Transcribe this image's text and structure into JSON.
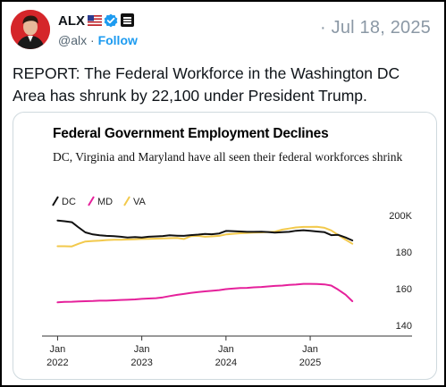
{
  "author": {
    "name": "ALX",
    "handle": "@alx",
    "separator": "·",
    "follow_label": "Follow",
    "flag_icon": "us-flag-icon",
    "verified_icon": "verified-badge-icon",
    "affiliate_icon": "affiliate-badge-icon"
  },
  "post": {
    "date_prefix": "·",
    "date": "Jul 18, 2025",
    "text": "REPORT: The Federal Workforce in the Washington DC Area has shrunk by 22,100 under President Trump."
  },
  "colors": {
    "verified_blue": "#1d9bf0",
    "avatar_red": "#d5262a",
    "DC": "#111111",
    "MD": "#e5219b",
    "VA": "#f2c94c"
  },
  "chart_data": {
    "type": "line",
    "title": "Federal Government Employment Declines",
    "subtitle": "DC, Virginia and Maryland have all seen their federal workforces shrink",
    "units_label": "200K",
    "ylim": [
      135,
      205
    ],
    "y_ticks": [
      200,
      180,
      160,
      140
    ],
    "y_tick_labels": [
      "200K",
      "180",
      "160",
      "140"
    ],
    "xlim": [
      2021.9,
      2025.7
    ],
    "x_ticks": [
      {
        "x": 2022,
        "top": "Jan",
        "bottom": "2022"
      },
      {
        "x": 2023,
        "top": "Jan",
        "bottom": "2023"
      },
      {
        "x": 2024,
        "top": "Jan",
        "bottom": "2024"
      },
      {
        "x": 2025,
        "top": "Jan",
        "bottom": "2025"
      }
    ],
    "legend": [
      "DC",
      "MD",
      "VA"
    ],
    "grid": false,
    "legend_position": "top-left",
    "series": [
      {
        "name": "DC",
        "points": [
          [
            2022.0,
            197.3
          ],
          [
            2022.08,
            196.9
          ],
          [
            2022.17,
            196.4
          ],
          [
            2022.25,
            193.5
          ],
          [
            2022.33,
            190.8
          ],
          [
            2022.42,
            189.7
          ],
          [
            2022.5,
            189.2
          ],
          [
            2022.58,
            188.9
          ],
          [
            2022.67,
            188.7
          ],
          [
            2022.75,
            188.4
          ],
          [
            2022.83,
            188.0
          ],
          [
            2022.92,
            188.2
          ],
          [
            2023.0,
            188.0
          ],
          [
            2023.08,
            188.4
          ],
          [
            2023.17,
            188.6
          ],
          [
            2023.25,
            188.8
          ],
          [
            2023.33,
            189.2
          ],
          [
            2023.42,
            189.0
          ],
          [
            2023.5,
            188.9
          ],
          [
            2023.58,
            189.3
          ],
          [
            2023.67,
            189.6
          ],
          [
            2023.75,
            189.9
          ],
          [
            2023.83,
            189.8
          ],
          [
            2023.92,
            190.2
          ],
          [
            2024.0,
            191.6
          ],
          [
            2024.08,
            191.5
          ],
          [
            2024.17,
            191.3
          ],
          [
            2024.25,
            191.1
          ],
          [
            2024.33,
            191.1
          ],
          [
            2024.42,
            191.2
          ],
          [
            2024.5,
            191.0
          ],
          [
            2024.58,
            190.7
          ],
          [
            2024.67,
            190.9
          ],
          [
            2024.75,
            191.1
          ],
          [
            2024.83,
            191.7
          ],
          [
            2024.92,
            192.0
          ],
          [
            2025.0,
            191.7
          ],
          [
            2025.08,
            191.3
          ],
          [
            2025.17,
            190.9
          ],
          [
            2025.25,
            189.3
          ],
          [
            2025.33,
            189.5
          ],
          [
            2025.42,
            188.0
          ],
          [
            2025.5,
            186.4
          ]
        ]
      },
      {
        "name": "MD",
        "points": [
          [
            2022.0,
            152.5
          ],
          [
            2022.08,
            152.7
          ],
          [
            2022.17,
            152.8
          ],
          [
            2022.25,
            153.0
          ],
          [
            2022.33,
            153.1
          ],
          [
            2022.42,
            153.2
          ],
          [
            2022.5,
            153.4
          ],
          [
            2022.58,
            153.4
          ],
          [
            2022.67,
            153.6
          ],
          [
            2022.75,
            153.8
          ],
          [
            2022.83,
            153.9
          ],
          [
            2022.92,
            154.1
          ],
          [
            2023.0,
            154.4
          ],
          [
            2023.08,
            154.6
          ],
          [
            2023.17,
            154.8
          ],
          [
            2023.25,
            155.2
          ],
          [
            2023.33,
            155.9
          ],
          [
            2023.42,
            156.6
          ],
          [
            2023.5,
            157.1
          ],
          [
            2023.58,
            157.6
          ],
          [
            2023.67,
            158.1
          ],
          [
            2023.75,
            158.5
          ],
          [
            2023.83,
            158.8
          ],
          [
            2023.92,
            159.2
          ],
          [
            2024.0,
            159.7
          ],
          [
            2024.08,
            160.0
          ],
          [
            2024.17,
            160.3
          ],
          [
            2024.25,
            160.4
          ],
          [
            2024.33,
            160.7
          ],
          [
            2024.42,
            160.9
          ],
          [
            2024.5,
            161.2
          ],
          [
            2024.58,
            161.5
          ],
          [
            2024.67,
            161.7
          ],
          [
            2024.75,
            162.0
          ],
          [
            2024.83,
            162.2
          ],
          [
            2024.92,
            162.6
          ],
          [
            2025.0,
            162.6
          ],
          [
            2025.08,
            162.5
          ],
          [
            2025.17,
            162.3
          ],
          [
            2025.25,
            161.7
          ],
          [
            2025.33,
            159.5
          ],
          [
            2025.42,
            156.7
          ],
          [
            2025.5,
            153.1
          ]
        ]
      },
      {
        "name": "VA",
        "points": [
          [
            2022.0,
            183.2
          ],
          [
            2022.08,
            183.2
          ],
          [
            2022.17,
            183.1
          ],
          [
            2022.25,
            184.6
          ],
          [
            2022.33,
            185.8
          ],
          [
            2022.42,
            186.1
          ],
          [
            2022.5,
            186.3
          ],
          [
            2022.58,
            186.6
          ],
          [
            2022.67,
            186.8
          ],
          [
            2022.75,
            186.8
          ],
          [
            2022.83,
            186.9
          ],
          [
            2022.92,
            187.0
          ],
          [
            2023.0,
            187.2
          ],
          [
            2023.08,
            187.3
          ],
          [
            2023.17,
            187.4
          ],
          [
            2023.25,
            187.5
          ],
          [
            2023.33,
            187.6
          ],
          [
            2023.42,
            187.7
          ],
          [
            2023.5,
            187.2
          ],
          [
            2023.58,
            188.7
          ],
          [
            2023.67,
            188.9
          ],
          [
            2023.75,
            188.4
          ],
          [
            2023.83,
            188.6
          ],
          [
            2023.92,
            188.9
          ],
          [
            2024.0,
            189.7
          ],
          [
            2024.08,
            190.0
          ],
          [
            2024.17,
            190.3
          ],
          [
            2024.25,
            190.5
          ],
          [
            2024.33,
            190.7
          ],
          [
            2024.42,
            190.8
          ],
          [
            2024.5,
            191.0
          ],
          [
            2024.58,
            191.2
          ],
          [
            2024.67,
            192.3
          ],
          [
            2024.75,
            192.9
          ],
          [
            2024.83,
            193.5
          ],
          [
            2024.92,
            193.8
          ],
          [
            2025.0,
            193.8
          ],
          [
            2025.08,
            193.9
          ],
          [
            2025.17,
            193.3
          ],
          [
            2025.25,
            191.9
          ],
          [
            2025.33,
            189.5
          ],
          [
            2025.42,
            186.8
          ],
          [
            2025.5,
            184.6
          ]
        ]
      }
    ]
  }
}
